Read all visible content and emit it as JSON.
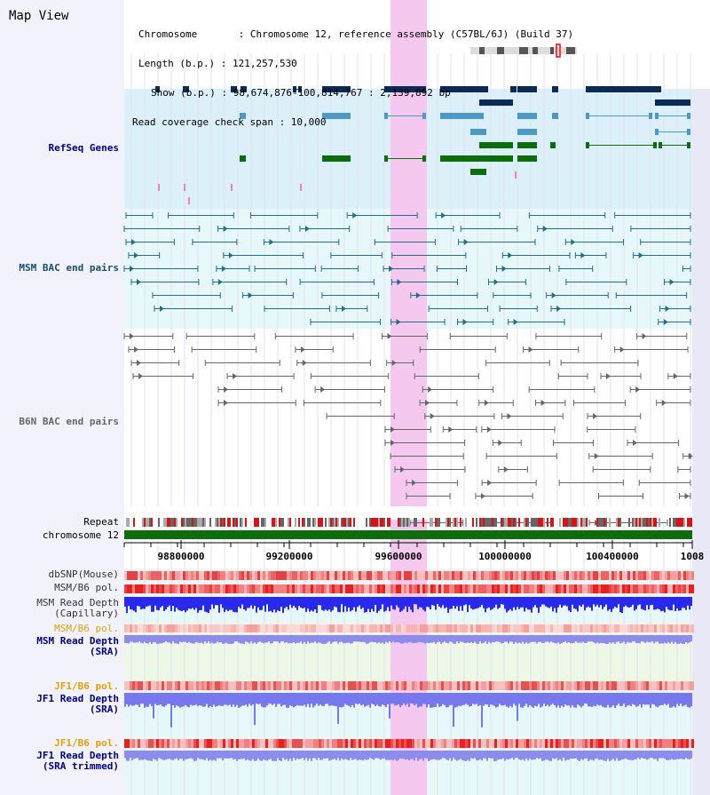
{
  "title": "Map View",
  "header": {
    "chromosome_line": "Chromosome       : Chromosome 12, reference assembly (C57BL/6J) (Build 37)",
    "length_line": "Length (b.p.) : 121,257,530",
    "show_line": "Show (b.p.) : 98,674,876-100,814,767 : 2,139,892 bp",
    "coverage_line": "Read coverage check span : 10,000"
  },
  "tracks": {
    "refseq": "RefSeq Genes",
    "msm_bac": "MSM BAC end pairs",
    "b6n_bac": "B6N BAC end pairs",
    "repeat": "Repeat",
    "chromosome": "chromosome 12",
    "dbsnp": "dbSNP(Mouse)",
    "msm_b6_pol_1": "MSM/B6 pol.",
    "msm_depth_cap": "MSM Read Depth\n(Capillary)",
    "msm_b6_pol_2": "MSM/B6 pol.",
    "msm_depth_sra": "MSM Read Depth\n(SRA)",
    "jf1_b6_pol_1": "JF1/B6 pol.",
    "jf1_depth_sra": "JF1 Read Depth\n(SRA)",
    "jf1_b6_pol_2": "JF1/B6 pol.",
    "jf1_depth_trim": "JF1 Read Depth\n(SRA trimmed)"
  },
  "axis": {
    "ticks": [
      "98800000",
      "99200000",
      "99600000",
      "100000000",
      "100400000",
      "1008"
    ]
  },
  "colors": {
    "refseq_bg": "#dcf0fa",
    "gene_dark": "#0a2a5a",
    "gene_mid": "#4a9ac8",
    "gene_green": "#0a6e0a",
    "msm_bac": "#1e6e8c",
    "b6n_bac": "#666666",
    "highlight": "#f5c8f0",
    "chromosome_bar": "#0a6e0a",
    "label_blue": "#000088",
    "label_orange": "#e6a000",
    "label_teal": "#14506e",
    "label_gray": "#666666"
  }
}
